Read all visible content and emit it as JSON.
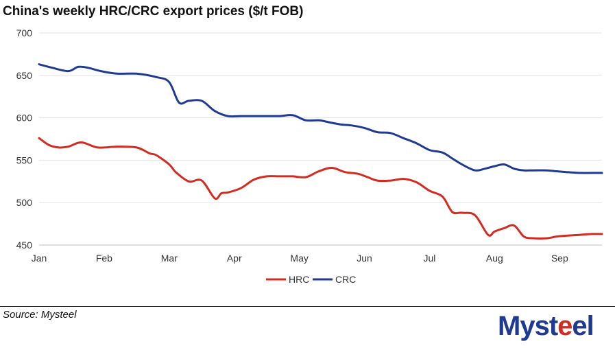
{
  "colors": {
    "hrc": "#d42a1f",
    "crc": "#1f3a93",
    "grid": "#e3e3e3",
    "logo_blue": "#1f3a93",
    "logo_red": "#d42a1f"
  },
  "chart_data": {
    "type": "line",
    "title": "China's weekly HRC/CRC export prices ($/t FOB)",
    "xlabel": "",
    "ylabel": "",
    "ylim": [
      450,
      700
    ],
    "yticks": [
      450,
      500,
      550,
      600,
      650,
      700
    ],
    "grid": true,
    "legend_position": "bottom-center",
    "x_tick_labels": [
      "Jan",
      "Feb",
      "Mar",
      "Apr",
      "May",
      "Jun",
      "Jul",
      "Aug",
      "Sep"
    ],
    "x_range": [
      0,
      8.65
    ],
    "series": [
      {
        "name": "HRC",
        "x": [
          0,
          0.15,
          0.3,
          0.45,
          0.65,
          0.9,
          1.2,
          1.5,
          1.7,
          1.8,
          2.0,
          2.1,
          2.3,
          2.5,
          2.7,
          2.8,
          2.9,
          3.1,
          3.3,
          3.5,
          3.7,
          3.9,
          4.1,
          4.3,
          4.5,
          4.7,
          4.9,
          5.05,
          5.2,
          5.4,
          5.6,
          5.8,
          6.0,
          6.2,
          6.35,
          6.5,
          6.7,
          6.9,
          7.0,
          7.15,
          7.3,
          7.45,
          7.6,
          7.8,
          7.95,
          8.1,
          8.3,
          8.5,
          8.65
        ],
        "values": [
          576,
          568,
          565,
          566,
          571,
          565,
          566,
          565,
          558,
          556,
          545,
          536,
          525,
          526,
          505,
          511,
          512,
          517,
          527,
          531,
          531,
          531,
          530,
          537,
          541,
          536,
          534,
          530,
          526,
          526,
          528,
          524,
          514,
          507,
          489,
          488,
          485,
          462,
          466,
          470,
          473,
          460,
          458,
          458,
          460,
          461,
          462,
          463,
          463
        ]
      },
      {
        "name": "CRC",
        "x": [
          0,
          0.2,
          0.45,
          0.6,
          0.75,
          0.95,
          1.2,
          1.5,
          1.8,
          2.0,
          2.15,
          2.3,
          2.5,
          2.7,
          2.9,
          3.1,
          3.3,
          3.5,
          3.7,
          3.9,
          4.1,
          4.3,
          4.5,
          4.65,
          4.8,
          5.0,
          5.2,
          5.4,
          5.6,
          5.8,
          6.0,
          6.2,
          6.35,
          6.5,
          6.7,
          6.85,
          7.0,
          7.15,
          7.3,
          7.45,
          7.6,
          7.8,
          7.95,
          8.1,
          8.3,
          8.5,
          8.65
        ],
        "values": [
          663,
          659,
          655,
          660,
          659,
          655,
          652,
          652,
          648,
          642,
          618,
          620,
          620,
          608,
          602,
          602,
          602,
          602,
          602,
          603,
          597,
          597,
          594,
          592,
          591,
          588,
          583,
          582,
          576,
          570,
          562,
          559,
          552,
          545,
          538,
          540,
          543,
          545,
          540,
          538,
          538,
          538,
          537,
          536,
          535,
          535,
          535
        ]
      }
    ]
  },
  "footer": {
    "source": "Source: Mysteel",
    "logo_part1": "Myst",
    "logo_part2": "e",
    "logo_part3": "el"
  }
}
